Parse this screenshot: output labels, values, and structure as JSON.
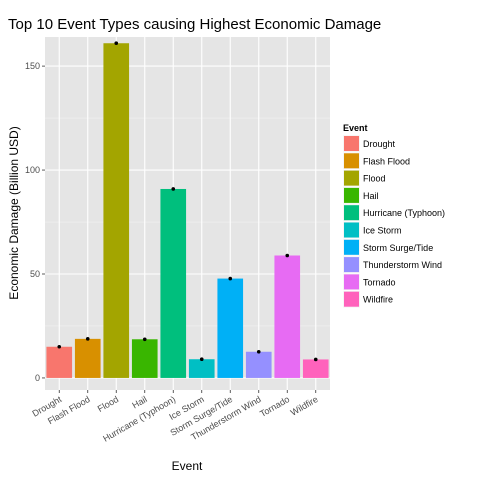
{
  "chart_data": {
    "type": "bar",
    "title": "Top 10 Event Types causing Highest Economic Damage",
    "xlabel": "Event",
    "ylabel": "Economic Damage (Billion USD)",
    "ylim": [
      -5.8,
      164
    ],
    "yticks": [
      0,
      50,
      100,
      150
    ],
    "grid": true,
    "legend": {
      "title": "Event",
      "position": "right"
    },
    "categories": [
      "Drought",
      "Flash Flood",
      "Flood",
      "Hail",
      "Hurricane (Typhoon)",
      "Ice Storm",
      "Storm Surge/Tide",
      "Thunderstorm Wind",
      "Tornado",
      "Wildfire"
    ],
    "values": [
      15.0,
      18.8,
      161.0,
      18.6,
      90.9,
      9.0,
      47.8,
      12.6,
      58.9,
      8.9
    ],
    "colors": [
      "#F8766D",
      "#D89000",
      "#A3A500",
      "#39B600",
      "#00BF7D",
      "#00BFC4",
      "#00B0F6",
      "#9590FF",
      "#E76BF3",
      "#FF62BC"
    ],
    "markers": "black dot at top of each bar",
    "panel_background": "#e5e5e5",
    "gridline_color": "#ffffff"
  }
}
